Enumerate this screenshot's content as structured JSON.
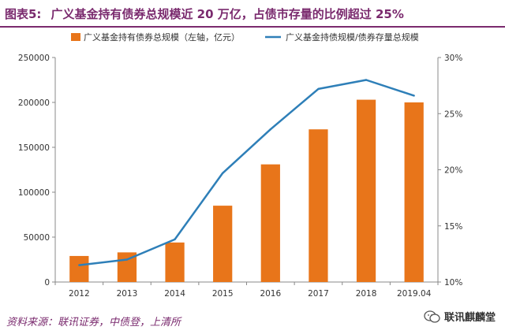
{
  "header": {
    "figure_label": "图表5:",
    "title": "广义基金持有债券总规模近 20 万亿，占债市存量的比例超过 25%"
  },
  "footer": {
    "source": "资料来源：联讯证券，中债登，上清所",
    "watermark": "联讯麒麟堂"
  },
  "chart_data": {
    "type": "bar+line",
    "categories": [
      "2012",
      "2013",
      "2014",
      "2015",
      "2016",
      "2017",
      "2018",
      "2019.04"
    ],
    "series": [
      {
        "name": "广义基金持有债券总规模（左轴，亿元）",
        "type": "bar",
        "axis": "left",
        "color": "#e8751a",
        "values": [
          29000,
          33000,
          44000,
          85000,
          131000,
          170000,
          203000,
          200000
        ]
      },
      {
        "name": "广义基金持债规模/债券存量总规模",
        "type": "line",
        "axis": "right",
        "color": "#2e7fb8",
        "values": [
          0.115,
          0.12,
          0.138,
          0.197,
          0.236,
          0.272,
          0.28,
          0.266
        ]
      }
    ],
    "y_left": {
      "min": 0,
      "max": 250000,
      "ticks": [
        "0",
        "50000",
        "100000",
        "150000",
        "200000",
        "250000"
      ]
    },
    "y_right": {
      "min": 0.1,
      "max": 0.3,
      "ticks": [
        "10%",
        "15%",
        "20%",
        "25%",
        "30%"
      ]
    },
    "legend_position": "top",
    "grid": false
  }
}
